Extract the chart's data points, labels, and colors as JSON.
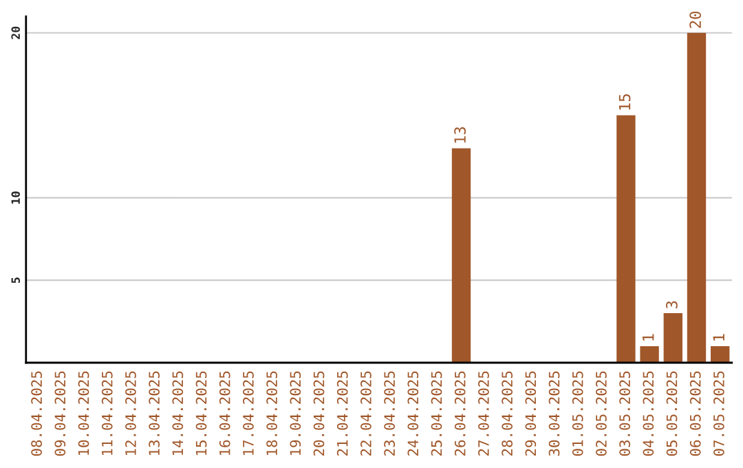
{
  "chart_data": {
    "type": "bar",
    "categories": [
      "08.04.2025",
      "09.04.2025",
      "10.04.2025",
      "11.04.2025",
      "12.04.2025",
      "13.04.2025",
      "14.04.2025",
      "15.04.2025",
      "16.04.2025",
      "17.04.2025",
      "18.04.2025",
      "19.04.2025",
      "20.04.2025",
      "21.04.2025",
      "22.04.2025",
      "23.04.2025",
      "24.04.2025",
      "25.04.2025",
      "26.04.2025",
      "27.04.2025",
      "28.04.2025",
      "29.04.2025",
      "30.04.2025",
      "01.05.2025",
      "02.05.2025",
      "03.05.2025",
      "04.05.2025",
      "05.05.2025",
      "06.05.2025",
      "07.05.2025"
    ],
    "values": [
      0,
      0,
      0,
      0,
      0,
      0,
      0,
      0,
      0,
      0,
      0,
      0,
      0,
      0,
      0,
      0,
      0,
      0,
      13,
      0,
      0,
      0,
      0,
      0,
      0,
      15,
      1,
      3,
      20,
      1
    ],
    "value_labels": [
      null,
      null,
      null,
      null,
      null,
      null,
      null,
      null,
      null,
      null,
      null,
      null,
      null,
      null,
      null,
      null,
      null,
      null,
      "13",
      null,
      null,
      null,
      null,
      null,
      null,
      "15",
      "1",
      "3",
      "20",
      "1"
    ],
    "color": "#a0572a",
    "ylim": [
      0,
      21
    ],
    "yticks": [
      5,
      10,
      20
    ],
    "grid": "y",
    "legend": false
  }
}
